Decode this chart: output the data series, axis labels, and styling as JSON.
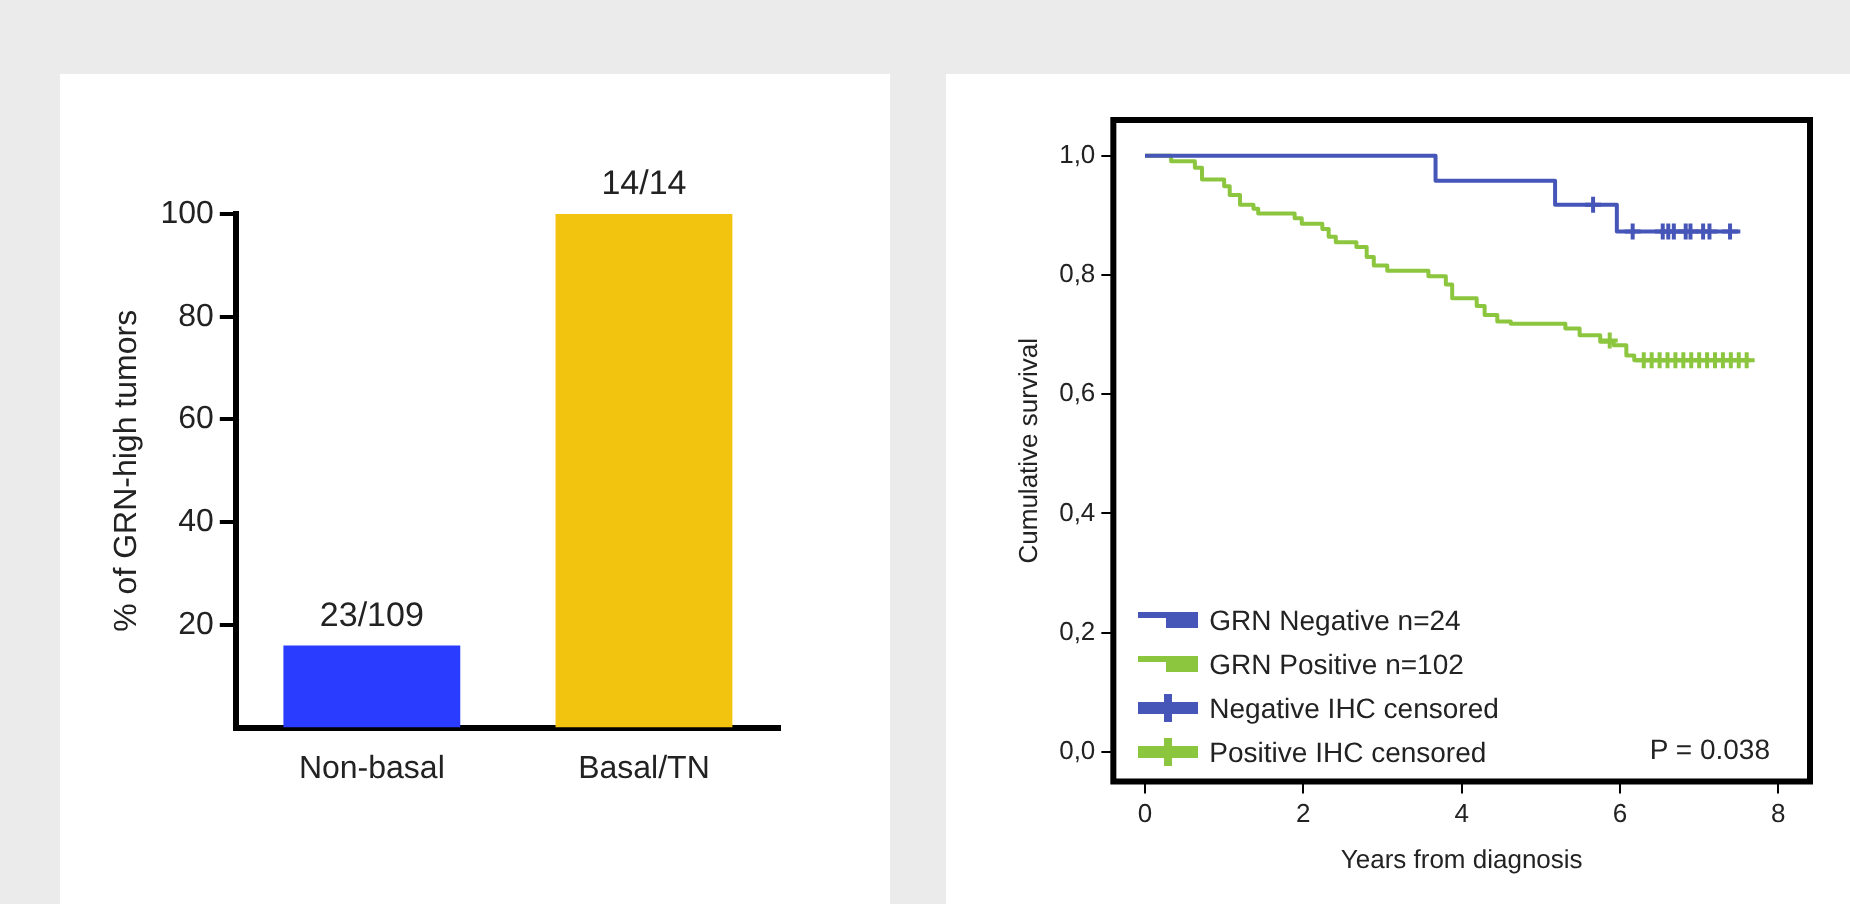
{
  "chart_data": [
    {
      "type": "bar",
      "ylabel": "% of GRN-high tumors",
      "categories": [
        "Non-basal",
        "Basal/TN"
      ],
      "values": [
        16,
        100
      ],
      "colors": [
        "#2a3cff",
        "#f2c40f"
      ],
      "value_labels": [
        "23/109",
        "14/14"
      ],
      "ylim": [
        0,
        100
      ],
      "yticks": [
        20,
        40,
        60,
        80,
        100
      ],
      "grid": false
    },
    {
      "type": "step",
      "xlabel": "Years from diagnosis",
      "ylabel": "Cumulative survival",
      "xlim": [
        -0.4,
        8.4
      ],
      "ylim": [
        -0.05,
        1.06
      ],
      "xticks": [
        0,
        2,
        4,
        6,
        8
      ],
      "yticks": [
        {
          "value": 0,
          "label": "0,0"
        },
        {
          "value": 0.2,
          "label": "0,2"
        },
        {
          "value": 0.4,
          "label": "0,4"
        },
        {
          "value": 0.6,
          "label": "0,6"
        },
        {
          "value": 0.8,
          "label": "0,8"
        },
        {
          "value": 1,
          "label": "1,0"
        }
      ],
      "grid": false,
      "legend": "bottom left",
      "annotations": [
        "P = 0.038"
      ],
      "series": [
        {
          "name": "GRN Negative n=24",
          "color": "#4656b8",
          "marker": "none",
          "x": [
            0,
            3.67,
            5.18,
            5.96,
            7.52
          ],
          "values": [
            1,
            0.958,
            0.918,
            0.873,
            0.873
          ]
        },
        {
          "name": "GRN Positive n=102",
          "color": "#8cc63f",
          "marker": "none",
          "x": [
            0,
            0.33,
            0.63,
            0.72,
            1.0,
            1.07,
            1.2,
            1.37,
            1.43,
            1.89,
            1.98,
            2.24,
            2.32,
            2.41,
            2.67,
            2.8,
            2.89,
            3.06,
            3.58,
            3.8,
            3.88,
            4.19,
            4.29,
            4.45,
            4.62,
            5.31,
            5.49,
            5.75,
            5.92,
            6.08,
            6.18,
            7.65
          ],
          "values": [
            1,
            0.991,
            0.98,
            0.96,
            0.949,
            0.934,
            0.918,
            0.911,
            0.903,
            0.895,
            0.886,
            0.877,
            0.864,
            0.855,
            0.847,
            0.83,
            0.816,
            0.807,
            0.798,
            0.784,
            0.761,
            0.748,
            0.733,
            0.722,
            0.718,
            0.71,
            0.699,
            0.688,
            0.682,
            0.665,
            0.657,
            0.657
          ]
        },
        {
          "name": "Negative IHC censored",
          "type": "scatter",
          "color": "#4656b8",
          "marker": "cross",
          "x": [
            5.66,
            6.16,
            6.54,
            6.61,
            6.68,
            6.83,
            6.89,
            7.05,
            7.13,
            7.39
          ],
          "values": [
            0.918,
            0.873,
            0.873,
            0.873,
            0.873,
            0.873,
            0.873,
            0.873,
            0.873,
            0.873
          ]
        },
        {
          "name": "Positive IHC censored",
          "type": "scatter",
          "color": "#8cc63f",
          "marker": "cross",
          "x": [
            5.87,
            6.3,
            6.4,
            6.5,
            6.6,
            6.7,
            6.8,
            6.9,
            7.0,
            7.1,
            7.2,
            7.3,
            7.4,
            7.5,
            7.6
          ],
          "values": [
            0.69,
            0.657,
            0.657,
            0.657,
            0.657,
            0.657,
            0.657,
            0.657,
            0.657,
            0.657,
            0.657,
            0.657,
            0.657,
            0.657,
            0.657
          ]
        }
      ]
    }
  ]
}
